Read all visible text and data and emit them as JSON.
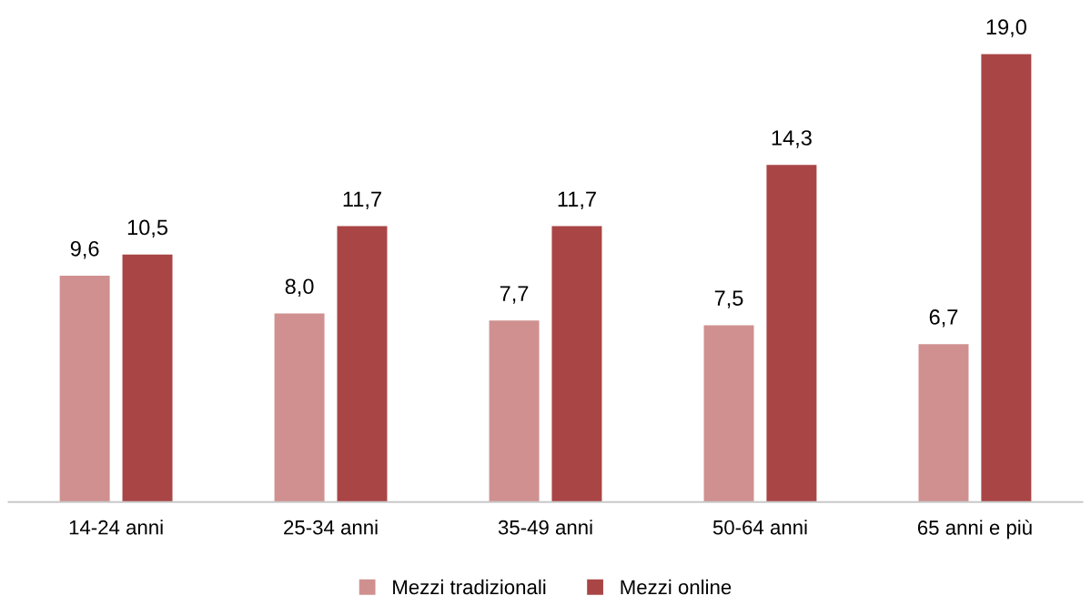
{
  "chart_data": {
    "type": "bar",
    "categories": [
      "14-24 anni",
      "25-34 anni",
      "35-49 anni",
      "50-64 anni",
      "65 anni e più"
    ],
    "series": [
      {
        "name": "Mezzi tradizionali",
        "color": "#d09090",
        "values": [
          9.6,
          8.0,
          7.7,
          7.5,
          6.7
        ],
        "value_labels": [
          "9,6",
          "8,0",
          "7,7",
          "7,5",
          "6,7"
        ]
      },
      {
        "name": "Mezzi online",
        "color": "#a94545",
        "values": [
          10.5,
          11.7,
          11.7,
          14.3,
          19.0
        ],
        "value_labels": [
          "10,5",
          "11,7",
          "11,7",
          "14,3",
          "19,0"
        ]
      }
    ],
    "tick_labels": "x",
    "grid": false,
    "legend": "bottom"
  }
}
